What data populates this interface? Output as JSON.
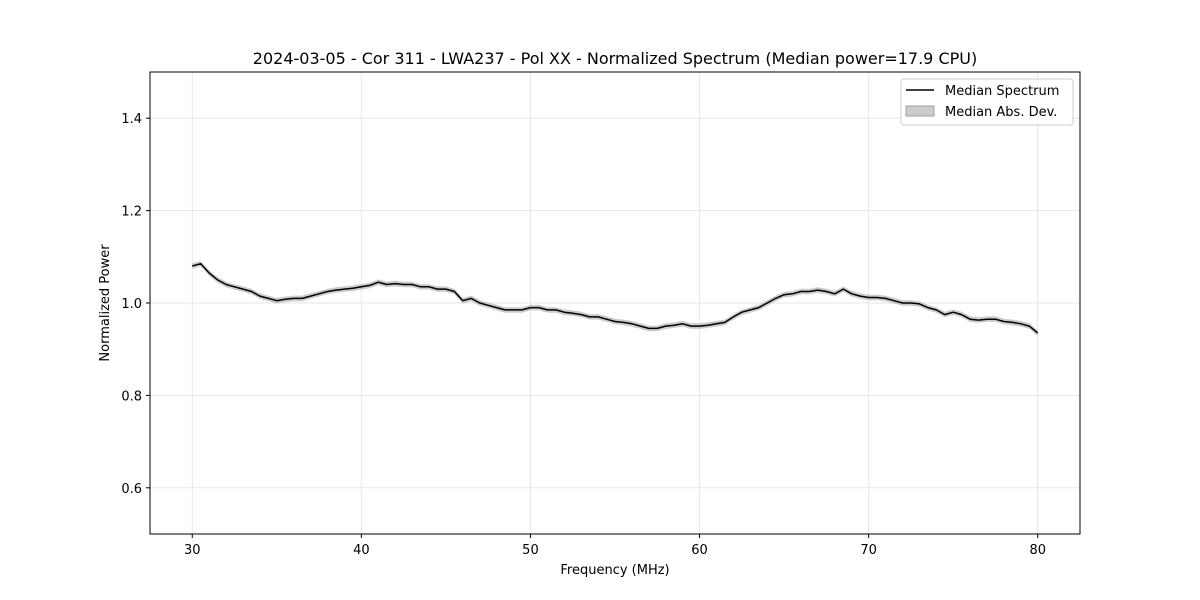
{
  "chart_data": {
    "type": "line",
    "title": "2024-03-05 - Cor 311 - LWA237 - Pol XX - Normalized Spectrum (Median power=17.9 CPU)",
    "xlabel": "Frequency (MHz)",
    "ylabel": "Normalized Power",
    "xlim": [
      27.5,
      82.5
    ],
    "ylim": [
      0.5,
      1.5
    ],
    "x_ticks": [
      30,
      40,
      50,
      60,
      70,
      80
    ],
    "y_ticks": [
      0.6,
      0.8,
      1.0,
      1.2,
      1.4
    ],
    "x_tick_labels": [
      "30",
      "40",
      "50",
      "60",
      "70",
      "80"
    ],
    "y_tick_labels": [
      "0.6",
      "0.8",
      "1.0",
      "1.2",
      "1.4"
    ],
    "grid": true,
    "legend_position": "top-right",
    "colors": {
      "line": "#000000",
      "band": "#a0a0a0"
    },
    "series": [
      {
        "name": "Median Spectrum",
        "kind": "line",
        "x": [
          30,
          30.5,
          31,
          31.5,
          32,
          32.5,
          33,
          33.5,
          34,
          34.5,
          35,
          35.5,
          36,
          36.5,
          37,
          37.5,
          38,
          38.5,
          39,
          39.5,
          40,
          40.5,
          41,
          41.5,
          42,
          42.5,
          43,
          43.5,
          44,
          44.5,
          45,
          45.5,
          46,
          46.5,
          47,
          47.5,
          48,
          48.5,
          49,
          49.5,
          50,
          50.5,
          51,
          51.5,
          52,
          52.5,
          53,
          53.5,
          54,
          54.5,
          55,
          55.5,
          56,
          56.5,
          57,
          57.5,
          58,
          58.5,
          59,
          59.5,
          60,
          60.5,
          61,
          61.5,
          62,
          62.5,
          63,
          63.5,
          64,
          64.5,
          65,
          65.5,
          66,
          66.5,
          67,
          67.5,
          68,
          68.5,
          69,
          69.5,
          70,
          70.5,
          71,
          71.5,
          72,
          72.5,
          73,
          73.5,
          74,
          74.5,
          75,
          75.5,
          76,
          76.5,
          77,
          77.5,
          78,
          78.5,
          79,
          79.5,
          80
        ],
        "y": [
          1.08,
          1.085,
          1.065,
          1.05,
          1.04,
          1.035,
          1.03,
          1.025,
          1.015,
          1.01,
          1.005,
          1.008,
          1.01,
          1.01,
          1.015,
          1.02,
          1.025,
          1.028,
          1.03,
          1.032,
          1.035,
          1.038,
          1.045,
          1.04,
          1.042,
          1.04,
          1.04,
          1.035,
          1.035,
          1.03,
          1.03,
          1.025,
          1.005,
          1.01,
          1.0,
          0.995,
          0.99,
          0.985,
          0.985,
          0.985,
          0.99,
          0.99,
          0.985,
          0.985,
          0.98,
          0.978,
          0.975,
          0.97,
          0.97,
          0.965,
          0.96,
          0.958,
          0.955,
          0.95,
          0.945,
          0.945,
          0.95,
          0.952,
          0.955,
          0.95,
          0.95,
          0.952,
          0.955,
          0.958,
          0.97,
          0.98,
          0.985,
          0.99,
          1.0,
          1.01,
          1.018,
          1.02,
          1.025,
          1.025,
          1.028,
          1.025,
          1.02,
          1.03,
          1.02,
          1.015,
          1.012,
          1.012,
          1.01,
          1.005,
          1.0,
          1.0,
          0.998,
          0.99,
          0.985,
          0.975,
          0.98,
          0.975,
          0.965,
          0.963,
          0.965,
          0.965,
          0.96,
          0.958,
          0.955,
          0.95,
          0.935
        ]
      },
      {
        "name": "Median Abs. Dev.",
        "kind": "band",
        "half_width": 0.006
      }
    ]
  }
}
